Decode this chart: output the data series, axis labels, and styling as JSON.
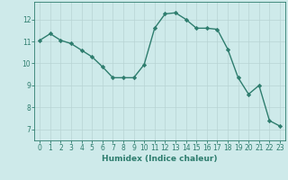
{
  "x": [
    0,
    1,
    2,
    3,
    4,
    5,
    6,
    7,
    8,
    9,
    10,
    11,
    12,
    13,
    14,
    15,
    16,
    17,
    18,
    19,
    20,
    21,
    22,
    23
  ],
  "y": [
    11.05,
    11.35,
    11.05,
    10.9,
    10.6,
    10.3,
    9.85,
    9.35,
    9.35,
    9.35,
    9.95,
    11.6,
    12.25,
    12.3,
    12.0,
    11.6,
    11.6,
    11.55,
    10.65,
    9.35,
    8.6,
    9.0,
    7.4,
    7.15
  ],
  "line_color": "#2e7d6e",
  "marker": "D",
  "markersize": 2.2,
  "linewidth": 1.0,
  "xlabel": "Humidex (Indice chaleur)",
  "xlim": [
    -0.5,
    23.5
  ],
  "ylim": [
    6.5,
    12.8
  ],
  "yticks": [
    7,
    8,
    9,
    10,
    11,
    12
  ],
  "xticks": [
    0,
    1,
    2,
    3,
    4,
    5,
    6,
    7,
    8,
    9,
    10,
    11,
    12,
    13,
    14,
    15,
    16,
    17,
    18,
    19,
    20,
    21,
    22,
    23
  ],
  "bg_color": "#ceeaea",
  "grid_color": "#b8d4d4",
  "tick_color": "#2e7d6e",
  "xlabel_fontsize": 6.5,
  "tick_fontsize": 5.5
}
